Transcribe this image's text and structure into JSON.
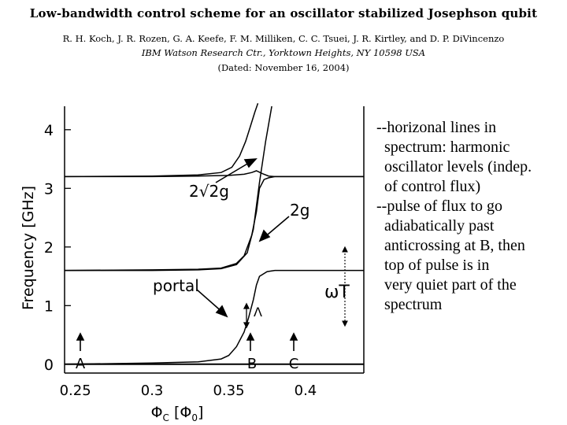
{
  "paper": {
    "title": "Low-bandwidth control scheme for an oscillator stabilized Josephson qubit",
    "authors": "R. H. Koch, J. R. Rozen, G. A. Keefe, F. M. Milliken, C. C. Tsuei, J. R. Kirtley, and D. P. DiVincenzo",
    "affiliation": "IBM Watson Research Ctr., Yorktown Heights, NY 10598 USA",
    "dated": "(Dated: November 16, 2004)"
  },
  "figure": {
    "ylabel": "Frequency [GHz]",
    "xlabel_main": "Φ",
    "xlabel_sub": "C",
    "xlabel_bracket_open": " [Φ",
    "xlabel_bracket_sub": "0",
    "xlabel_bracket_close": "]",
    "annotations": {
      "two_root_two_g": "2√2g",
      "two_g": "2g",
      "portal": "portal",
      "delta": "Λ",
      "omega_t": "ωT",
      "marker_a": "A",
      "marker_b": "B",
      "marker_c": "C"
    }
  },
  "chart_data": {
    "type": "line",
    "xlabel": "ΦC [Φ0]",
    "ylabel": "Frequency [GHz]",
    "xlim": [
      0.243,
      0.438
    ],
    "ylim": [
      -0.15,
      4.4
    ],
    "x_ticks": [
      "0.25",
      "0.3",
      "0.35",
      "0.4"
    ],
    "x_tick_values": [
      0.25,
      0.3,
      0.35,
      0.4
    ],
    "y_ticks": [
      "0",
      "1",
      "2",
      "3",
      "4"
    ],
    "y_tick_values": [
      0,
      1,
      2,
      3,
      4
    ],
    "series": [
      {
        "x": [
          0.243,
          0.3,
          0.33,
          0.345,
          0.35,
          0.355,
          0.36,
          0.363,
          0.366,
          0.368,
          0.37,
          0.375,
          0.38,
          0.4,
          0.438
        ],
        "y": [
          0.0,
          0.02,
          0.04,
          0.09,
          0.15,
          0.3,
          0.55,
          0.8,
          1.1,
          1.35,
          1.5,
          1.58,
          1.6,
          1.6,
          1.6
        ]
      },
      {
        "x": [
          0.243,
          0.3,
          0.33,
          0.345,
          0.355,
          0.36,
          0.365,
          0.368,
          0.37,
          0.373,
          0.376,
          0.38,
          0.4,
          0.438
        ],
        "y": [
          1.6,
          1.61,
          1.62,
          1.64,
          1.72,
          1.85,
          2.2,
          2.6,
          3.0,
          3.15,
          3.18,
          3.2,
          3.2,
          3.2
        ]
      },
      {
        "x": [
          0.243,
          0.3,
          0.33,
          0.345,
          0.355,
          0.362,
          0.366,
          0.368,
          0.37,
          0.372,
          0.374,
          0.376,
          0.378
        ],
        "y": [
          1.6,
          1.6,
          1.61,
          1.63,
          1.7,
          1.9,
          2.3,
          2.7,
          3.1,
          3.45,
          3.8,
          4.1,
          4.4
        ]
      },
      {
        "x": [
          0.243,
          0.3,
          0.33,
          0.345,
          0.352,
          0.357,
          0.361,
          0.364,
          0.367,
          0.369
        ],
        "y": [
          3.2,
          3.21,
          3.23,
          3.27,
          3.36,
          3.55,
          3.8,
          4.05,
          4.3,
          4.45
        ]
      },
      {
        "x": [
          0.243,
          0.3,
          0.33,
          0.35,
          0.36,
          0.365,
          0.368,
          0.372,
          0.376,
          0.38,
          0.4,
          0.438
        ],
        "y": [
          3.2,
          3.2,
          3.21,
          3.22,
          3.24,
          3.27,
          3.3,
          3.25,
          3.21,
          3.2,
          3.2,
          3.2
        ]
      },
      {
        "x": [
          0.243,
          0.438
        ],
        "y": [
          0.0,
          0.0
        ]
      }
    ]
  },
  "notes": {
    "lines": [
      "--horizonal lines in",
      "spectrum: harmonic",
      "oscillator levels (indep.",
      "of control flux)",
      "--pulse of flux to go",
      "adiabatically past",
      "anticrossing at B, then",
      "top of pulse is in",
      "very quiet part of the",
      "spectrum"
    ]
  }
}
